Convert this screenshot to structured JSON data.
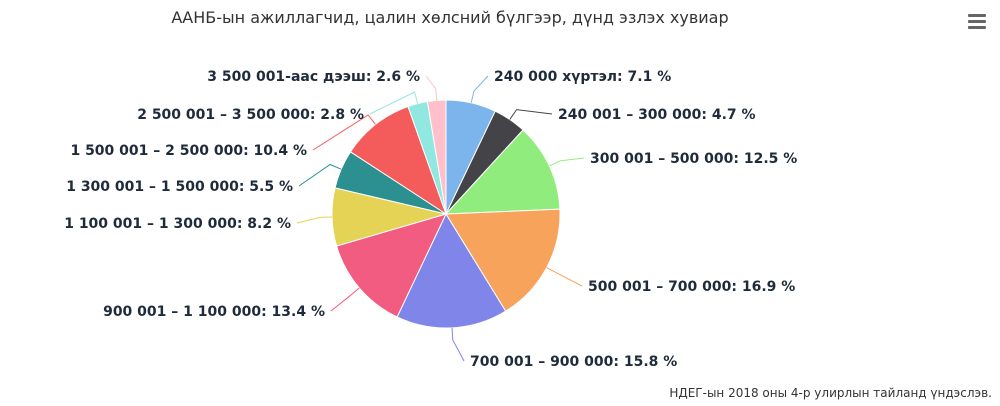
{
  "chart_data": {
    "type": "pie",
    "title": "ААНБ-ын ажиллагчид, цалин хөлсний бүлгээр, дүнд эзлэх хувиар",
    "slices": [
      {
        "label": "240 000 хүртэл: 7.1 %",
        "value": 7.1,
        "color": "#7cb5ec"
      },
      {
        "label": "240 001 – 300 000: 4.7 %",
        "value": 4.7,
        "color": "#434348"
      },
      {
        "label": "300 001 – 500 000: 12.5 %",
        "value": 12.5,
        "color": "#90ed7d"
      },
      {
        "label": "500 001 – 700 000: 16.9 %",
        "value": 16.9,
        "color": "#f7a35c"
      },
      {
        "label": "700 001 – 900 000: 15.8 %",
        "value": 15.8,
        "color": "#8085e9"
      },
      {
        "label": "900 001 – 1 100 000: 13.4 %",
        "value": 13.4,
        "color": "#f15c80"
      },
      {
        "label": "1 100 001 – 1 300 000: 8.2 %",
        "value": 8.2,
        "color": "#e4d354"
      },
      {
        "label": "1 300 001 – 1 500 000: 5.5 %",
        "value": 5.5,
        "color": "#2b908f"
      },
      {
        "label": "1 500 001 – 2 500 000: 10.4 %",
        "value": 10.4,
        "color": "#f45b5b"
      },
      {
        "label": "2 500 001 – 3 500 000: 2.8 %",
        "value": 2.8,
        "color": "#91e8e1"
      },
      {
        "label": "3 500 001-аас дээш: 2.6 %",
        "value": 2.6,
        "color": "#ffc0cb"
      }
    ],
    "credit": "НДЕГ-ын 2018 оны 4-р улирлын тайланд үндэслэв."
  },
  "menu_icon": "hamburger-menu-icon"
}
